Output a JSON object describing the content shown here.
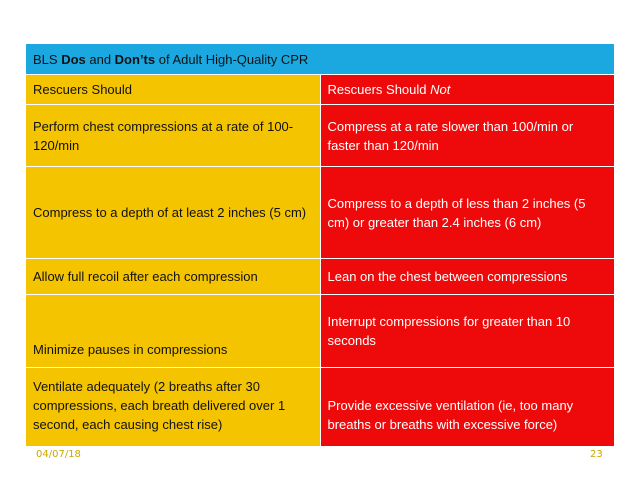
{
  "title": {
    "prefix": "BLS ",
    "dos": "Dos",
    "mid": " and ",
    "donts": "Don’ts",
    "suffix": " of Adult High-Quality CPR"
  },
  "headers": {
    "should": "Rescuers Should",
    "should_not_prefix": "Rescuers Should ",
    "should_not_emph": "Not"
  },
  "rows": [
    {
      "should": "Perform chest compressions at a rate of 100-120/min",
      "should_not": "Compress at a rate slower than 100/min or faster than 120/min"
    },
    {
      "should": "Compress to a depth of at least 2 inches (5 cm)",
      "should_not": "Compress to a depth of less than 2 inches (5 cm) or greater than 2.4 inches (6 cm)"
    },
    {
      "should": "Allow full recoil after each compression",
      "should_not": "Lean on the chest between compressions"
    },
    {
      "should": "Minimize pauses in compressions",
      "should_not": "Interrupt compressions for greater than 10 seconds"
    },
    {
      "should": "Ventilate adequately (2 breaths after 30 compressions, each breath delivered over 1 second, each causing chest rise)",
      "should_not": "Provide excessive ventilation (ie, too many breaths or breaths with excessive force)"
    }
  ],
  "footer": {
    "date": "04/07/18",
    "page": "23"
  },
  "colors": {
    "title_bg": "#1ba8e1",
    "should_bg": "#f5c400",
    "should_not_bg": "#ee0a0a"
  }
}
